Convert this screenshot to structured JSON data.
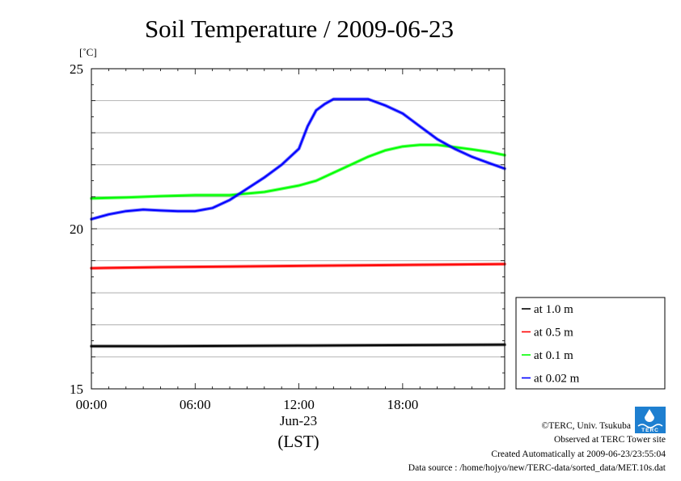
{
  "chart_data": {
    "type": "line",
    "title": "Soil Temperature / 2009-06-23",
    "ylabel": "[˚C]",
    "xlabel": "(LST)",
    "date_label": "Jun-23",
    "ylim": [
      15,
      25
    ],
    "xlim": [
      0,
      23.9
    ],
    "y_ticks": [
      "15",
      "20",
      "25"
    ],
    "x_ticks": [
      {
        "value": 0,
        "label": "00:00"
      },
      {
        "value": 6,
        "label": "06:00"
      },
      {
        "value": 12,
        "label": "12:00"
      },
      {
        "value": 18,
        "label": "18:00"
      }
    ],
    "legend_position": "lower-right-outside",
    "grid": true,
    "series": [
      {
        "name": "at 1.0 m",
        "color": "#000000",
        "x": [
          0,
          4,
          8,
          12,
          16,
          20,
          23.9
        ],
        "y": [
          16.33,
          16.33,
          16.34,
          16.35,
          16.36,
          16.37,
          16.38
        ]
      },
      {
        "name": "at 0.5 m",
        "color": "#ff0000",
        "x": [
          0,
          4,
          8,
          12,
          16,
          20,
          23.9
        ],
        "y": [
          18.77,
          18.8,
          18.82,
          18.84,
          18.86,
          18.88,
          18.9
        ]
      },
      {
        "name": "at 0.1 m",
        "color": "#00ff00",
        "x": [
          0,
          2,
          4,
          6,
          8,
          10,
          12,
          13,
          14,
          15,
          16,
          17,
          18,
          19,
          20,
          21,
          22,
          23,
          23.9
        ],
        "y": [
          20.95,
          20.98,
          21.02,
          21.05,
          21.05,
          21.15,
          21.35,
          21.5,
          21.75,
          22.0,
          22.25,
          22.45,
          22.57,
          22.62,
          22.62,
          22.55,
          22.48,
          22.4,
          22.3
        ]
      },
      {
        "name": "at 0.02 m",
        "color": "#0000ff",
        "x": [
          0,
          1,
          2,
          3,
          4,
          5,
          6,
          7,
          8,
          9,
          10,
          11,
          12,
          12.5,
          13,
          13.5,
          14,
          15,
          16,
          17,
          18,
          19,
          20,
          21,
          22,
          23,
          23.9
        ],
        "y": [
          20.3,
          20.45,
          20.55,
          20.6,
          20.57,
          20.55,
          20.55,
          20.65,
          20.9,
          21.25,
          21.6,
          22.0,
          22.5,
          23.2,
          23.7,
          23.9,
          24.05,
          24.05,
          24.05,
          23.85,
          23.6,
          23.2,
          22.8,
          22.5,
          22.25,
          22.05,
          21.88
        ]
      }
    ]
  },
  "footer": {
    "copyright": "©TERC, Univ. Tsukuba",
    "observed": "Observed at TERC Tower site",
    "created": "Created Automatically at 2009-06-23/23:55:04",
    "source": "Data source : /home/hojyo/new/TERC-data/sorted_data/MET.10s.dat",
    "logo_text": "TERC"
  },
  "colors": {
    "logo_blue": "#1e7fd0",
    "grid": "#a0a0a0"
  }
}
